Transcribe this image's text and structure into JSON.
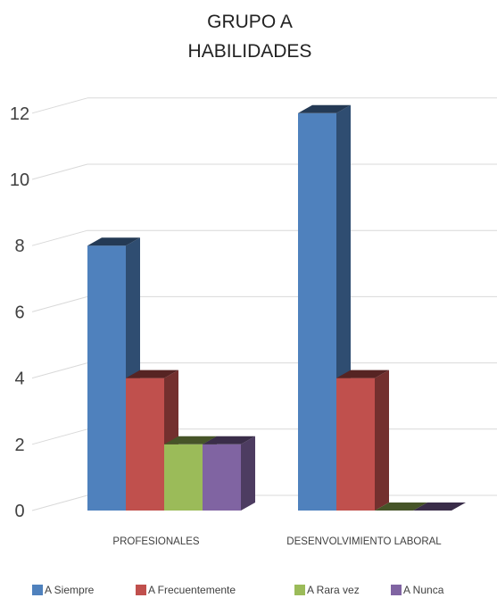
{
  "chart_data": {
    "type": "bar",
    "title": "GRUPO A",
    "subtitle": "HABILIDADES",
    "categories": [
      "PROFESIONALES",
      "DESENVOLVIMIENTO LABORAL"
    ],
    "series": [
      {
        "name": "A Siempre",
        "values": [
          8,
          12
        ],
        "color": "#4f81bd"
      },
      {
        "name": "A Frecuentemente",
        "values": [
          4,
          4
        ],
        "color": "#c0504d"
      },
      {
        "name": "A Rara vez",
        "values": [
          2,
          0
        ],
        "color": "#9bbb59"
      },
      {
        "name": "A Nunca",
        "values": [
          2,
          0
        ],
        "color": "#8064a2"
      }
    ],
    "ylim": [
      0,
      12
    ],
    "yticks": [
      "0",
      "2",
      "4",
      "6",
      "8",
      "10",
      "12"
    ],
    "grid": true,
    "legend_position": "bottom",
    "style": "3d-clustered-column"
  }
}
